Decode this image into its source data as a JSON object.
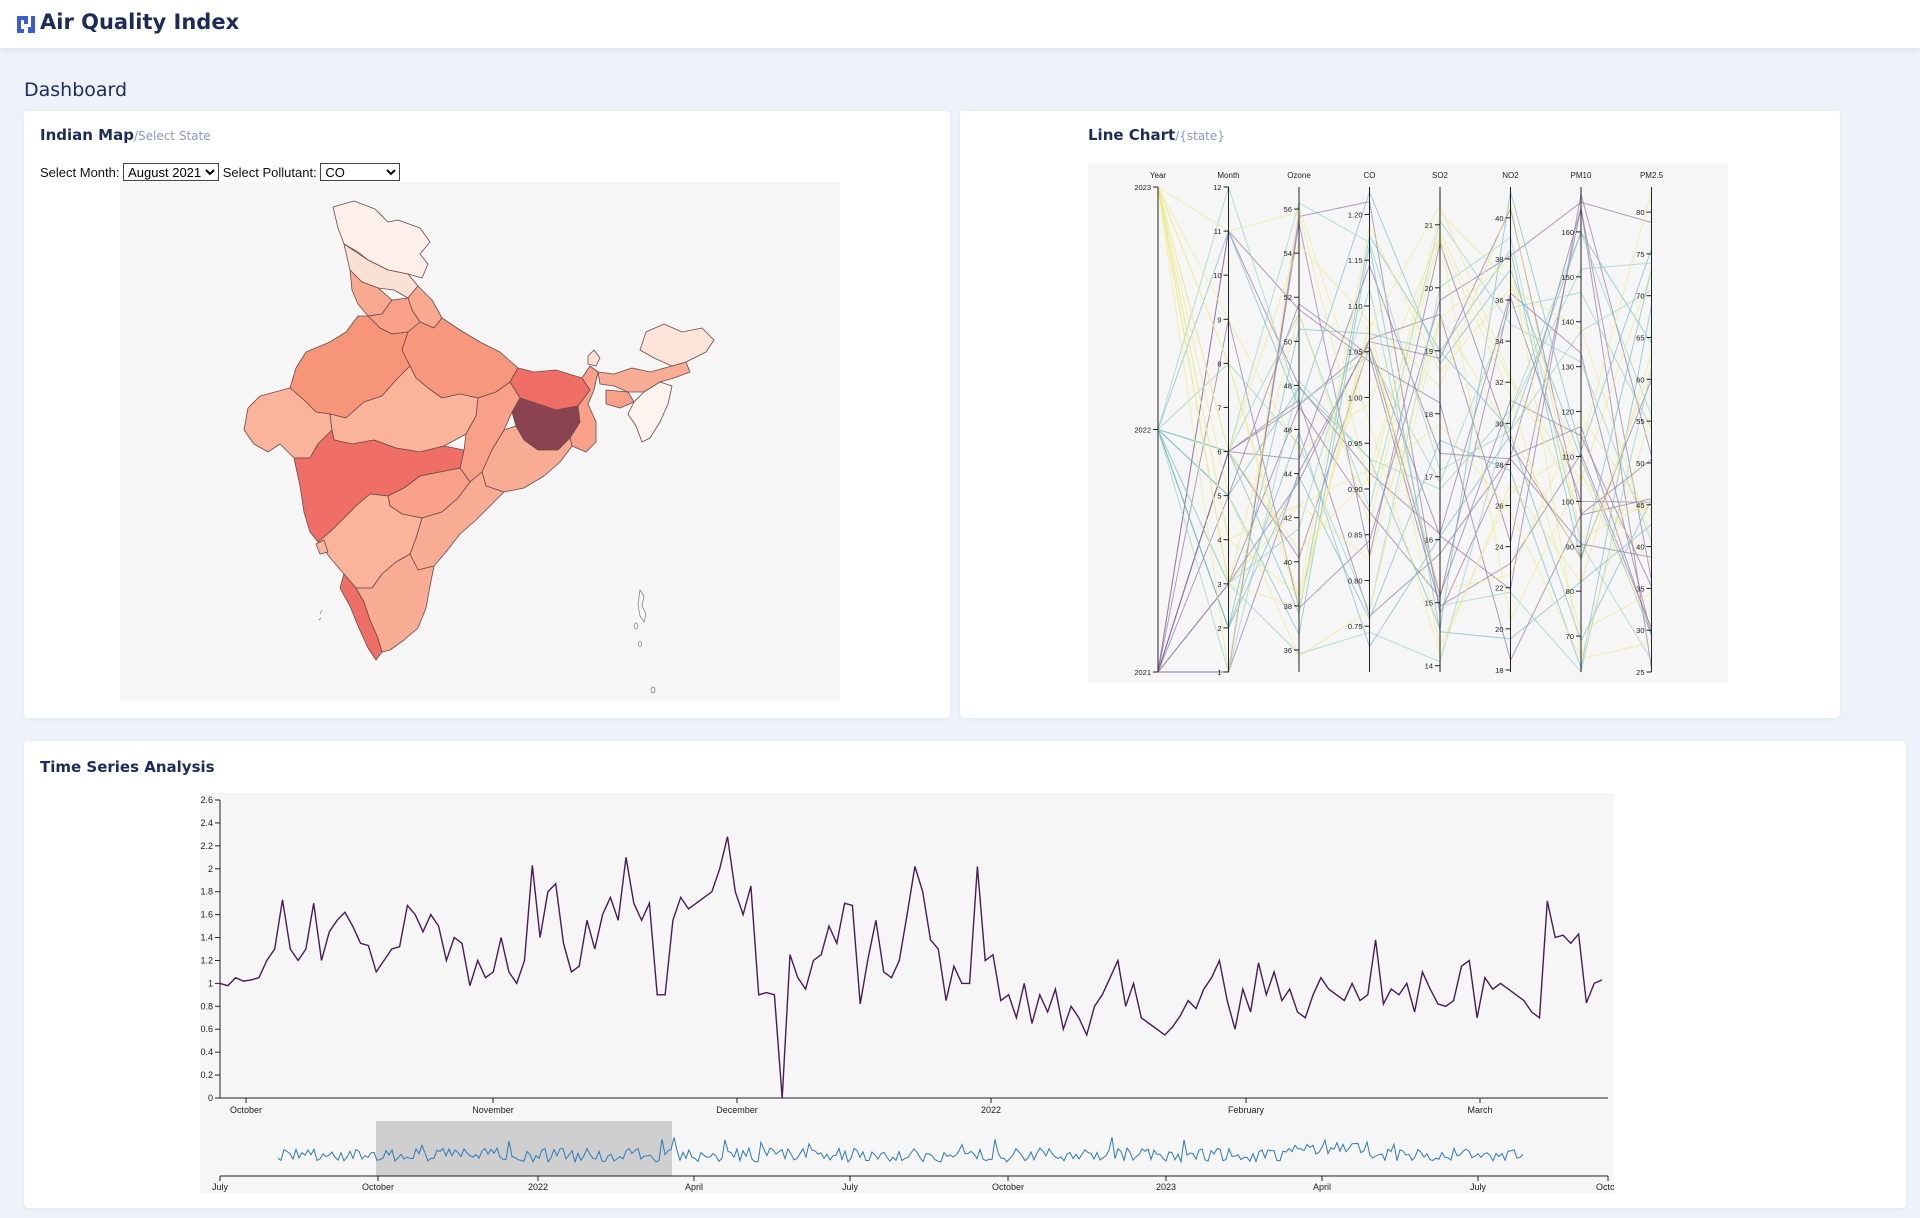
{
  "header": {
    "app_title": "Air Quality Index"
  },
  "page": {
    "title": "Dashboard"
  },
  "map_card": {
    "title": "Indian Map",
    "subtitle": "/Select State",
    "month_label": "Select Month:",
    "month_value": "August 2021",
    "pollutant_label": "Select Pollutant:",
    "pollutant_value": "CO"
  },
  "line_card": {
    "title": "Line Chart",
    "subtitle": "/{state}"
  },
  "ts_card": {
    "title": "Time Series Analysis"
  },
  "colors": {
    "accent": "#3d5bd9",
    "map_dark": "#8b4351",
    "map_high": "#ef6f66",
    "map_mid": "#f8a088",
    "map_low": "#fde7de",
    "ts_line": "#4a1a5c",
    "brush_line": "#2b7bba"
  },
  "chart_data": [
    {
      "type": "parallel_coordinates",
      "axes": [
        {
          "name": "Year",
          "ticks": [
            "2021",
            "2022",
            "2023"
          ],
          "range": [
            2021,
            2023
          ]
        },
        {
          "name": "Month",
          "ticks": [
            "1",
            "2",
            "3",
            "4",
            "5",
            "6",
            "7",
            "8",
            "9",
            "10",
            "11",
            "12"
          ],
          "range": [
            1,
            12
          ]
        },
        {
          "name": "Ozone",
          "ticks": [
            "36",
            "38",
            "40",
            "42",
            "44",
            "46",
            "48",
            "50",
            "52",
            "54",
            "56"
          ],
          "range": [
            35,
            57
          ]
        },
        {
          "name": "CO",
          "ticks": [
            "0.75",
            "0.80",
            "0.85",
            "0.90",
            "0.95",
            "1.00",
            "1.05",
            "1.10",
            "1.15",
            "1.20"
          ],
          "range": [
            0.7,
            1.23
          ]
        },
        {
          "name": "SO2",
          "ticks": [
            "14",
            "15",
            "16",
            "17",
            "18",
            "19",
            "20",
            "21"
          ],
          "range": [
            13.9,
            21.6
          ]
        },
        {
          "name": "NO2",
          "ticks": [
            "18",
            "20",
            "22",
            "24",
            "26",
            "28",
            "30",
            "32",
            "34",
            "36",
            "38",
            "40"
          ],
          "range": [
            17.9,
            41.5
          ]
        },
        {
          "name": "PM10",
          "ticks": [
            "70",
            "80",
            "90",
            "100",
            "110",
            "120",
            "130",
            "140",
            "150",
            "160"
          ],
          "range": [
            62,
            170
          ]
        },
        {
          "name": "PM2.5",
          "ticks": [
            "25",
            "30",
            "35",
            "40",
            "45",
            "50",
            "55",
            "60",
            "65",
            "70",
            "75",
            "80"
          ],
          "range": [
            25,
            83
          ]
        }
      ]
    },
    {
      "type": "line",
      "y_ticks": [
        "0",
        "0.2",
        "0.4",
        "0.6",
        "0.8",
        "1",
        "1.2",
        "1.4",
        "1.6",
        "1.8",
        "2",
        "2.2",
        "2.4",
        "2.6"
      ],
      "ylim": [
        0,
        2.6
      ],
      "x_ticks": [
        "October",
        "November",
        "December",
        "2022",
        "February",
        "March"
      ],
      "values": [
        1.0,
        0.98,
        1.05,
        1.02,
        1.03,
        1.05,
        1.2,
        1.3,
        1.73,
        1.3,
        1.2,
        1.3,
        1.7,
        1.2,
        1.45,
        1.55,
        1.62,
        1.5,
        1.35,
        1.33,
        1.1,
        1.2,
        1.3,
        1.32,
        1.68,
        1.6,
        1.45,
        1.6,
        1.5,
        1.2,
        1.4,
        1.35,
        0.98,
        1.2,
        1.05,
        1.1,
        1.4,
        1.1,
        1.0,
        1.2,
        2.03,
        1.4,
        1.8,
        1.87,
        1.35,
        1.1,
        1.15,
        1.55,
        1.3,
        1.6,
        1.75,
        1.55,
        2.1,
        1.7,
        1.55,
        1.7,
        0.9,
        0.9,
        1.55,
        1.75,
        1.65,
        1.7,
        1.75,
        1.8,
        2.0,
        2.28,
        1.8,
        1.6,
        1.85,
        0.9,
        0.92,
        0.9,
        0.0,
        1.25,
        1.05,
        0.95,
        1.2,
        1.25,
        1.5,
        1.35,
        1.7,
        1.68,
        0.82,
        1.22,
        1.55,
        1.1,
        1.05,
        1.2,
        1.6,
        2.02,
        1.8,
        1.38,
        1.3,
        0.85,
        1.15,
        1.0,
        1.0,
        2.02,
        1.2,
        1.25,
        0.85,
        0.9,
        0.7,
        1.0,
        0.65,
        0.9,
        0.75,
        0.95,
        0.6,
        0.8,
        0.7,
        0.55,
        0.8,
        0.9,
        1.05,
        1.2,
        0.8,
        1.0,
        0.7,
        0.65,
        0.6,
        0.55,
        0.62,
        0.72,
        0.85,
        0.78,
        0.95,
        1.05,
        1.2,
        0.85,
        0.6,
        0.95,
        0.75,
        1.18,
        0.9,
        1.1,
        0.85,
        0.95,
        0.75,
        0.7,
        0.9,
        1.05,
        0.95,
        0.9,
        0.85,
        1.0,
        0.85,
        0.9,
        1.38,
        0.82,
        0.95,
        0.9,
        1.0,
        0.75,
        1.1,
        0.95,
        0.82,
        0.8,
        0.85,
        1.15,
        1.2,
        0.7,
        1.05,
        0.95,
        1.0,
        0.95,
        0.9,
        0.85,
        0.75,
        0.7,
        1.72,
        1.4,
        1.42,
        1.35,
        1.43,
        0.83,
        1.0,
        1.03
      ]
    },
    {
      "type": "line",
      "role": "brush_overview",
      "x_ticks": [
        "July",
        "October",
        "2022",
        "April",
        "July",
        "October",
        "2023",
        "April",
        "July",
        "Octob"
      ],
      "brush_range": [
        "October",
        "April"
      ]
    }
  ]
}
